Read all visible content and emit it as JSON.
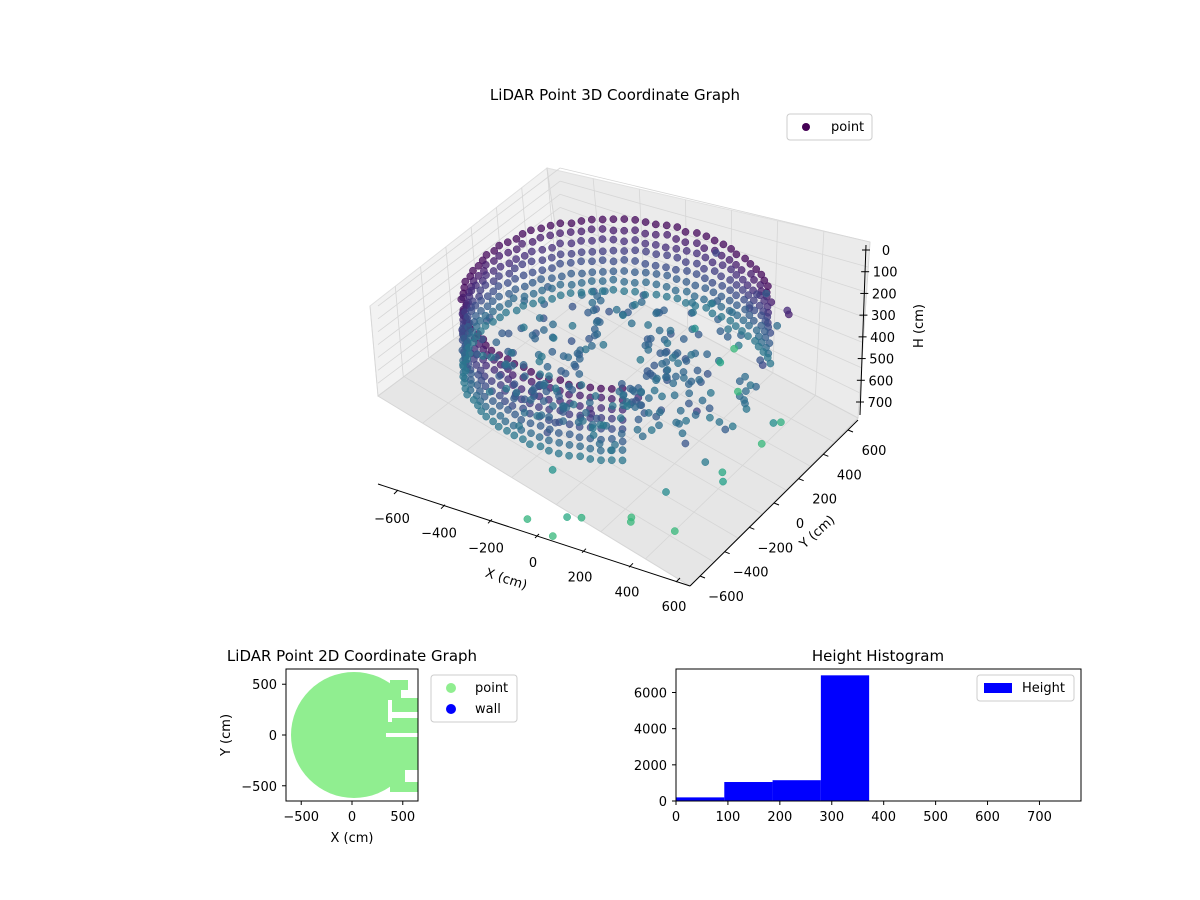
{
  "chart_data": [
    {
      "type": "scatter",
      "projection": "3d",
      "title": "LiDAR Point 3D Coordinate Graph",
      "xlabel": "X (cm)",
      "ylabel": "Y (cm)",
      "zlabel": "H (cm)",
      "xlim": [
        -700,
        700
      ],
      "ylim": [
        -700,
        700
      ],
      "zlim": [
        750,
        0
      ],
      "z_axis_inverted": true,
      "xticks": [
        "−600",
        "−400",
        "−200",
        "0",
        "200",
        "400",
        "600"
      ],
      "yticks": [
        "−600",
        "−400",
        "−200",
        "0",
        "200",
        "400",
        "600"
      ],
      "zticks": [
        "0",
        "100",
        "200",
        "300",
        "400",
        "500",
        "600",
        "700"
      ],
      "legend": {
        "position": "top-right",
        "entries": [
          {
            "label": "point",
            "color": "#440154"
          }
        ]
      },
      "colormap": "viridis",
      "grid": true,
      "description_of_data": "Ring of points at radius ~600 cm, heights ~80-420 cm (wall), with sparse outliers up to ~700 cm height"
    },
    {
      "type": "scatter",
      "title": "LiDAR Point 2D Coordinate Graph",
      "xlabel": "X (cm)",
      "ylabel": "Y (cm)",
      "xlim": [
        -650,
        650
      ],
      "ylim": [
        -650,
        650
      ],
      "xticks": [
        "−500",
        "0",
        "500"
      ],
      "yticks": [
        "−500",
        "0",
        "500"
      ],
      "series": [
        {
          "name": "point",
          "color": "#90ee90"
        },
        {
          "name": "wall",
          "color": "#0000ff"
        }
      ],
      "legend": {
        "position": "outside-right"
      }
    },
    {
      "type": "bar",
      "title": "Height Histogram",
      "xlabel": "",
      "ylabel": "",
      "xlim": [
        0,
        780
      ],
      "ylim": [
        0,
        7300
      ],
      "xticks": [
        "0",
        "100",
        "200",
        "300",
        "400",
        "500",
        "600",
        "700"
      ],
      "yticks": [
        "0",
        "2000",
        "4000",
        "6000"
      ],
      "bins": [
        {
          "start": 0,
          "end": 93,
          "value": 200
        },
        {
          "start": 93,
          "end": 186,
          "value": 1050
        },
        {
          "start": 186,
          "end": 279,
          "value": 1150
        },
        {
          "start": 279,
          "end": 372,
          "value": 6950
        },
        {
          "start": 372,
          "end": 465,
          "value": 25
        },
        {
          "start": 465,
          "end": 558,
          "value": 20
        },
        {
          "start": 558,
          "end": 651,
          "value": 15
        },
        {
          "start": 651,
          "end": 744,
          "value": 15
        },
        {
          "start": 744,
          "end": 780,
          "value": 10
        }
      ],
      "series": [
        {
          "name": "Height",
          "color": "#0000ff"
        }
      ],
      "legend": {
        "position": "top-right"
      }
    }
  ]
}
